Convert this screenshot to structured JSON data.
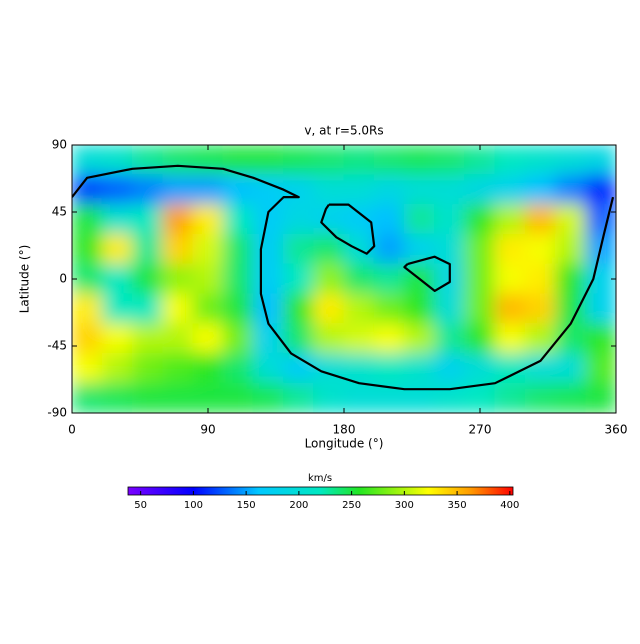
{
  "chart_data": {
    "type": "heatmap",
    "title": "v, at r=5.0Rs",
    "x_label": "Longitude (°)",
    "y_label": "Latitude (°)",
    "xlim": [
      0,
      360
    ],
    "ylim": [
      -90,
      90
    ],
    "xticks": [
      0,
      90,
      180,
      270,
      360
    ],
    "yticks": [
      -90,
      -45,
      0,
      45,
      90
    ],
    "x": [
      10,
      30,
      50,
      70,
      90,
      110,
      130,
      150,
      170,
      190,
      210,
      230,
      250,
      270,
      290,
      310,
      330,
      350
    ],
    "y": [
      80,
      60,
      40,
      20,
      0,
      -20,
      -40,
      -60,
      -80
    ],
    "values": [
      [
        200,
        210,
        230,
        240,
        245,
        250,
        250,
        245,
        240,
        235,
        240,
        245,
        240,
        230,
        220,
        210,
        200,
        190
      ],
      [
        120,
        130,
        140,
        150,
        150,
        160,
        170,
        180,
        200,
        200,
        190,
        200,
        200,
        190,
        180,
        160,
        140,
        110
      ],
      [
        250,
        210,
        220,
        360,
        330,
        220,
        170,
        190,
        180,
        170,
        160,
        230,
        210,
        260,
        300,
        350,
        310,
        130
      ],
      [
        260,
        330,
        230,
        340,
        310,
        240,
        170,
        230,
        240,
        200,
        150,
        180,
        200,
        280,
        330,
        320,
        300,
        150
      ],
      [
        240,
        220,
        250,
        290,
        300,
        240,
        170,
        220,
        290,
        240,
        230,
        250,
        190,
        280,
        320,
        330,
        260,
        180
      ],
      [
        330,
        220,
        220,
        320,
        280,
        250,
        160,
        260,
        330,
        300,
        280,
        260,
        200,
        280,
        350,
        340,
        250,
        180
      ],
      [
        340,
        320,
        300,
        300,
        320,
        280,
        180,
        240,
        300,
        310,
        320,
        300,
        230,
        260,
        320,
        300,
        240,
        260
      ],
      [
        320,
        300,
        280,
        270,
        260,
        240,
        200,
        170,
        200,
        210,
        220,
        210,
        180,
        200,
        220,
        200,
        200,
        270
      ],
      [
        240,
        245,
        250,
        250,
        250,
        250,
        245,
        230,
        210,
        200,
        200,
        200,
        210,
        220,
        230,
        240,
        245,
        250
      ]
    ],
    "contours": [
      {
        "x": [
          0,
          10,
          40,
          70,
          100,
          120,
          140,
          150,
          140,
          130,
          125,
          125,
          130,
          145,
          165,
          190,
          220,
          250,
          280,
          310,
          330,
          345,
          352,
          358
        ],
        "y": [
          55,
          68,
          74,
          76,
          74,
          68,
          60,
          55,
          55,
          45,
          20,
          -10,
          -30,
          -50,
          -62,
          -70,
          -74,
          -74,
          -70,
          -55,
          -30,
          0,
          30,
          55
        ]
      },
      {
        "x": [
          170,
          183,
          198,
          200,
          195,
          185,
          175,
          165,
          168,
          170
        ],
        "y": [
          50,
          50,
          38,
          22,
          17,
          22,
          28,
          38,
          47,
          50
        ]
      },
      {
        "x": [
          222,
          240,
          250,
          250,
          240,
          230,
          220,
          222
        ],
        "y": [
          10,
          15,
          10,
          -2,
          -8,
          0,
          8,
          10
        ]
      }
    ],
    "colorbar": {
      "label": "km/s",
      "lim": [
        38,
        403
      ],
      "ticks": [
        50,
        100,
        150,
        200,
        250,
        300,
        350,
        400
      ]
    }
  }
}
